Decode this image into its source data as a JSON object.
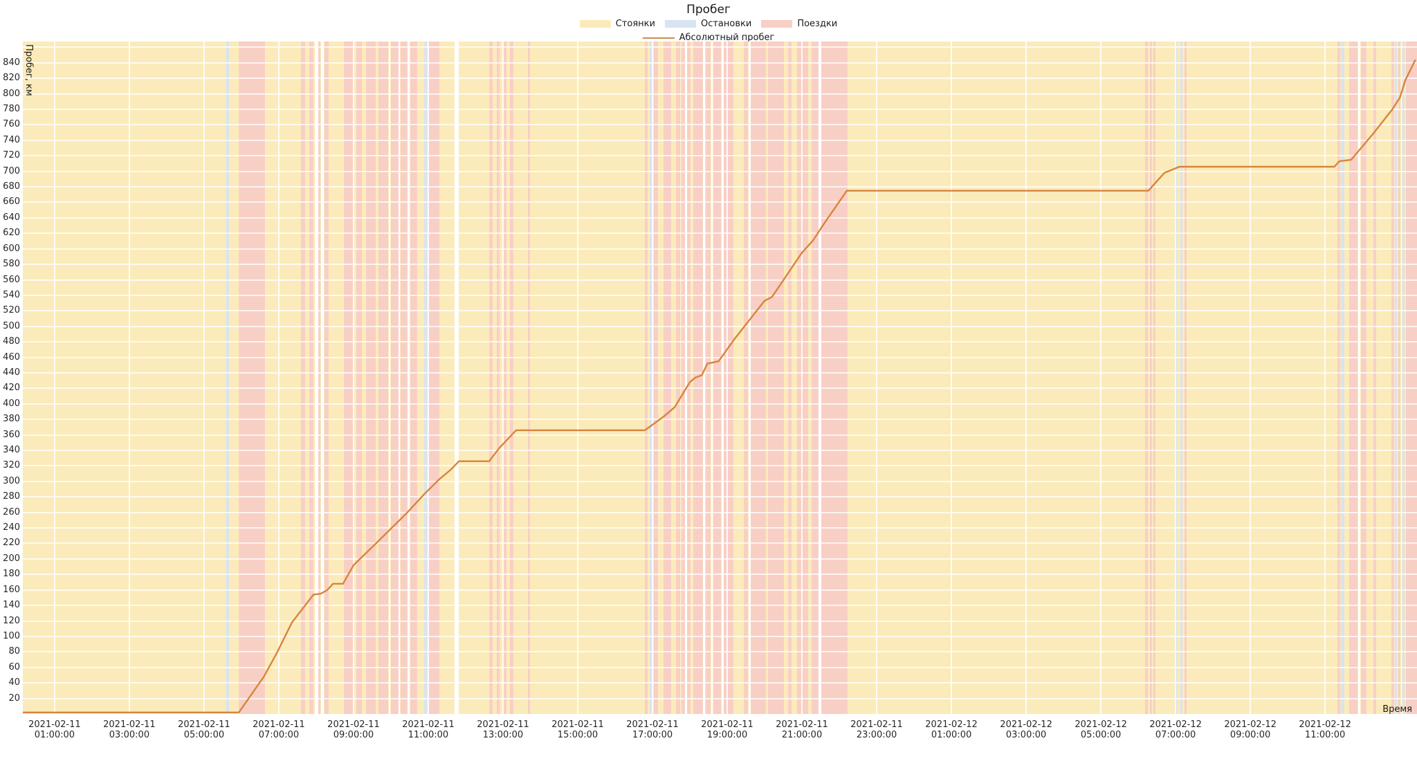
{
  "title": "Пробег",
  "legend": {
    "items": [
      {
        "label": "Стоянки",
        "type": "patch",
        "color": "#FBEBBA"
      },
      {
        "label": "Остановки",
        "type": "patch",
        "color": "#D7E4F1"
      },
      {
        "label": "Поездки",
        "type": "patch",
        "color": "#F8CFC5"
      },
      {
        "label": "Абсолютный пробег",
        "type": "line",
        "color": "#CB8B51"
      }
    ]
  },
  "axes": {
    "x_label": "Время",
    "y_label": "Пробег, км",
    "time_origin": "2021-02-11 00:00:00",
    "x_min_hours": 0.15,
    "x_max_hours": 37.46,
    "y_min": 0,
    "y_max": 867.5,
    "y_ticks": [
      20,
      40,
      60,
      80,
      100,
      120,
      140,
      160,
      180,
      200,
      220,
      240,
      260,
      280,
      300,
      320,
      340,
      360,
      380,
      400,
      420,
      440,
      460,
      480,
      500,
      520,
      540,
      560,
      580,
      600,
      620,
      640,
      660,
      680,
      700,
      720,
      740,
      760,
      780,
      800,
      820,
      840
    ],
    "y_grid_max": 860,
    "x_ticks": [
      {
        "hour": 1,
        "date": "2021-02-11",
        "time": "01:00:00"
      },
      {
        "hour": 3,
        "date": "2021-02-11",
        "time": "03:00:00"
      },
      {
        "hour": 5,
        "date": "2021-02-11",
        "time": "05:00:00"
      },
      {
        "hour": 7,
        "date": "2021-02-11",
        "time": "07:00:00"
      },
      {
        "hour": 9,
        "date": "2021-02-11",
        "time": "09:00:00"
      },
      {
        "hour": 11,
        "date": "2021-02-11",
        "time": "11:00:00"
      },
      {
        "hour": 13,
        "date": "2021-02-11",
        "time": "13:00:00"
      },
      {
        "hour": 15,
        "date": "2021-02-11",
        "time": "15:00:00"
      },
      {
        "hour": 17,
        "date": "2021-02-11",
        "time": "17:00:00"
      },
      {
        "hour": 19,
        "date": "2021-02-11",
        "time": "19:00:00"
      },
      {
        "hour": 21,
        "date": "2021-02-11",
        "time": "21:00:00"
      },
      {
        "hour": 23,
        "date": "2021-02-11",
        "time": "23:00:00"
      },
      {
        "hour": 25,
        "date": "2021-02-12",
        "time": "01:00:00"
      },
      {
        "hour": 27,
        "date": "2021-02-12",
        "time": "03:00:00"
      },
      {
        "hour": 29,
        "date": "2021-02-12",
        "time": "05:00:00"
      },
      {
        "hour": 31,
        "date": "2021-02-12",
        "time": "07:00:00"
      },
      {
        "hour": 33,
        "date": "2021-02-12",
        "time": "09:00:00"
      },
      {
        "hour": 35,
        "date": "2021-02-12",
        "time": "11:00:00"
      }
    ]
  },
  "colors": {
    "background": "#FFFFFF",
    "parking_band": "#FBEBBA",
    "trip_band": "#F8CFC5",
    "stop_band": "#D7E4F1",
    "gap_band": "#FFFFFF",
    "line": "#D8843B",
    "grid_horizontal": "rgba(255,255,255,0.75)",
    "grid_vertical": "rgba(255,255,255,0.85)",
    "text": "#262626"
  },
  "chart_data": {
    "type": "line",
    "title": "Пробег",
    "xlabel": "Время",
    "ylabel": "Пробег, км",
    "x_unit": "hours since 2021-02-11 00:00:00",
    "x_range_hours": [
      0.15,
      37.46
    ],
    "y_range_km": [
      0,
      867.5
    ],
    "grid": true,
    "legend_position": "top-center",
    "series": [
      {
        "name": "Абсолютный пробег",
        "points_hour_km": [
          [
            0.15,
            2
          ],
          [
            5.93,
            2
          ],
          [
            6.6,
            48
          ],
          [
            6.94,
            78
          ],
          [
            7.35,
            118
          ],
          [
            7.93,
            154
          ],
          [
            8.12,
            155
          ],
          [
            8.3,
            160
          ],
          [
            8.45,
            168
          ],
          [
            8.72,
            168
          ],
          [
            9.0,
            192
          ],
          [
            9.6,
            220
          ],
          [
            10.4,
            258
          ],
          [
            10.9,
            284
          ],
          [
            11.3,
            303
          ],
          [
            11.6,
            315
          ],
          [
            11.82,
            326
          ],
          [
            12.63,
            326
          ],
          [
            12.9,
            343
          ],
          [
            13.35,
            366
          ],
          [
            16.8,
            366
          ],
          [
            17.31,
            384
          ],
          [
            17.6,
            396
          ],
          [
            18.0,
            428
          ],
          [
            18.15,
            434
          ],
          [
            18.32,
            437
          ],
          [
            18.47,
            452
          ],
          [
            18.77,
            455
          ],
          [
            19.2,
            484
          ],
          [
            20.0,
            533
          ],
          [
            20.2,
            538
          ],
          [
            21.0,
            595
          ],
          [
            21.3,
            611
          ],
          [
            21.6,
            633
          ],
          [
            22.2,
            675
          ],
          [
            30.27,
            675
          ],
          [
            30.7,
            698
          ],
          [
            31.1,
            706
          ],
          [
            35.25,
            706
          ],
          [
            35.38,
            713
          ],
          [
            35.7,
            715
          ],
          [
            36.26,
            747
          ],
          [
            36.8,
            780
          ],
          [
            37.0,
            795
          ],
          [
            37.15,
            818
          ],
          [
            37.42,
            844
          ]
        ]
      }
    ],
    "background_bands": {
      "base": "parking",
      "trips": [
        [
          5.93,
          6.63
        ],
        [
          7.59,
          7.7
        ],
        [
          7.81,
          7.93
        ],
        [
          8.06,
          8.12
        ],
        [
          8.22,
          8.33
        ],
        [
          8.74,
          9.0
        ],
        [
          9.07,
          9.22
        ],
        [
          9.33,
          9.59
        ],
        [
          9.67,
          9.93
        ],
        [
          10.0,
          10.2
        ],
        [
          10.26,
          10.44
        ],
        [
          10.52,
          10.7
        ],
        [
          10.98,
          11.3
        ],
        [
          12.63,
          12.72
        ],
        [
          12.83,
          12.91
        ],
        [
          13.02,
          13.09
        ],
        [
          13.19,
          13.28
        ],
        [
          13.67,
          13.72
        ],
        [
          16.8,
          16.87
        ],
        [
          17.04,
          17.15
        ],
        [
          17.3,
          17.5
        ],
        [
          17.63,
          17.74
        ],
        [
          17.78,
          17.87
        ],
        [
          17.93,
          18.02
        ],
        [
          18.1,
          18.35
        ],
        [
          18.42,
          18.56
        ],
        [
          18.63,
          18.84
        ],
        [
          18.91,
          19.17
        ],
        [
          19.44,
          19.55
        ],
        [
          19.63,
          20.04
        ],
        [
          20.09,
          20.52
        ],
        [
          20.62,
          20.72
        ],
        [
          20.87,
          21.17
        ],
        [
          21.26,
          21.44
        ],
        [
          21.52,
          22.22
        ],
        [
          30.19,
          30.26
        ],
        [
          30.31,
          30.37
        ],
        [
          30.41,
          30.46
        ],
        [
          31.24,
          31.3
        ],
        [
          35.33,
          35.41
        ],
        [
          35.65,
          35.87
        ],
        [
          35.96,
          36.11
        ],
        [
          36.3,
          36.36
        ],
        [
          36.78,
          36.85
        ],
        [
          36.96,
          37.02
        ],
        [
          37.17,
          37.46
        ]
      ],
      "stops": [
        [
          5.6,
          5.66
        ],
        [
          10.89,
          10.96
        ],
        [
          16.93,
          17.0
        ],
        [
          30.98,
          31.05
        ],
        [
          31.12,
          31.19
        ],
        [
          35.43,
          35.52
        ],
        [
          36.87,
          36.93
        ],
        [
          37.07,
          37.13
        ]
      ],
      "gaps": [
        [
          7.96,
          8.05
        ],
        [
          8.13,
          8.21
        ],
        [
          9.94,
          9.99
        ],
        [
          10.21,
          10.25
        ],
        [
          10.45,
          10.5
        ],
        [
          11.7,
          11.81
        ],
        [
          17.87,
          17.92
        ],
        [
          18.36,
          18.41
        ],
        [
          18.57,
          18.62
        ],
        [
          18.85,
          18.9
        ],
        [
          19.58,
          19.62
        ],
        [
          21.45,
          21.51
        ],
        [
          35.88,
          35.95
        ],
        [
          37.03,
          37.06
        ]
      ]
    }
  }
}
